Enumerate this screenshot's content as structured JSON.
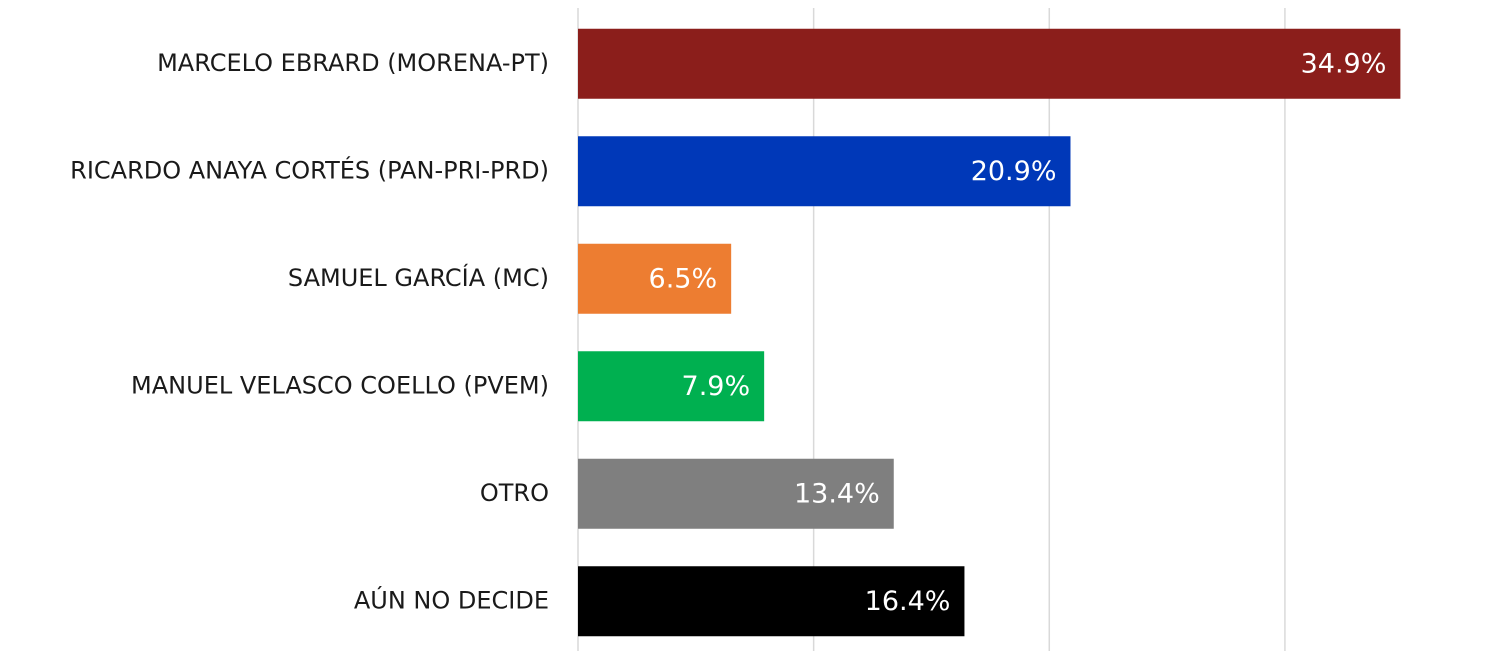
{
  "chart_data": {
    "type": "hbar",
    "categories": [
      "MARCELO EBRARD (MORENA-PT)",
      "RICARDO ANAYA CORTÉS (PAN-PRI-PRD)",
      "SAMUEL GARCÍA (MC)",
      "MANUEL VELASCO COELLO (PVEM)",
      "OTRO",
      "AÚN NO DECIDE"
    ],
    "values": [
      34.9,
      20.9,
      6.5,
      7.9,
      13.4,
      16.4
    ],
    "value_labels": [
      "34.9%",
      "20.9%",
      "6.5%",
      "7.9%",
      "13.4%",
      "16.4%"
    ],
    "colors": [
      "#8b1e1b",
      "#0038b8",
      "#ed7d31",
      "#00b050",
      "#7f7f7f",
      "#000000"
    ],
    "xlim": [
      0,
      39
    ],
    "xticks": [
      0,
      10,
      20,
      30
    ],
    "grid": true
  }
}
